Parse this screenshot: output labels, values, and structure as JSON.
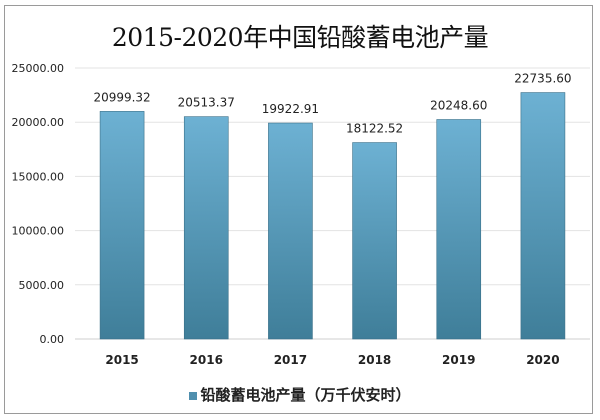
{
  "chart_data": {
    "type": "bar",
    "title": "2015-2020年中国铅酸蓄电池产量",
    "categories": [
      "2015",
      "2016",
      "2017",
      "2018",
      "2019",
      "2020"
    ],
    "series": [
      {
        "name": "铅酸蓄电池产量（万千伏安时）",
        "values": [
          20999.32,
          20513.37,
          19922.91,
          18122.52,
          20248.6,
          22735.6
        ]
      }
    ],
    "data_labels": [
      "20999.32",
      "20513.37",
      "19922.91",
      "18122.52",
      "20248.60",
      "22735.60"
    ],
    "ylim": [
      0,
      25000
    ],
    "yticks": [
      "0.00",
      "5000.00",
      "10000.00",
      "15000.00",
      "20000.00",
      "25000.00"
    ],
    "grid": true,
    "legend": "bottom",
    "colors": {
      "bar_top": "#6db1d3",
      "bar_bottom": "#3f7e99"
    }
  }
}
